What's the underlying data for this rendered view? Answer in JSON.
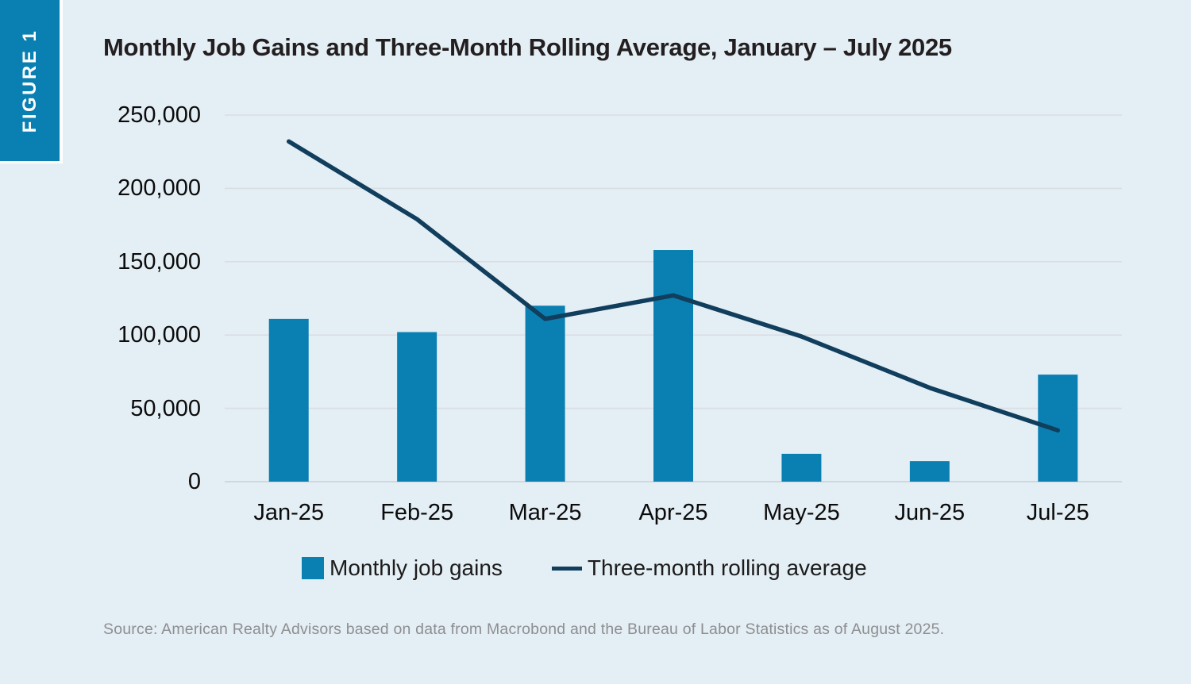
{
  "figure": {
    "label": "FIGURE 1"
  },
  "source": "Source: American Realty Advisors based on data from Macrobond and the Bureau of Labor Statistics as of August 2025.",
  "legend": [
    {
      "label": "Monthly job gains",
      "swatch": "bar-square"
    },
    {
      "label": "Three-month rolling average",
      "swatch": "line-dash"
    }
  ],
  "colors": {
    "background": "#e4eef5",
    "figure_tag": "#0a80b2",
    "bar": "#0a80b2",
    "line": "#103e5c",
    "gridline": "#d9dee2",
    "axis_line": "#c9d1d6",
    "title_text": "#231f20",
    "axis_text": "#0b0b0b",
    "source_text": "#8d8f91"
  },
  "chart_data": {
    "type": "bar",
    "title": "Monthly Job Gains and Three-Month Rolling Average, January – July 2025",
    "categories": [
      "Jan-25",
      "Feb-25",
      "Mar-25",
      "Apr-25",
      "May-25",
      "Jun-25",
      "Jul-25"
    ],
    "series": [
      {
        "name": "Monthly job gains",
        "type": "bar",
        "color": "#0a80b2",
        "values": [
          111000,
          102000,
          120000,
          158000,
          19000,
          14000,
          73000
        ]
      },
      {
        "name": "Three-month rolling average",
        "type": "line",
        "color": "#103e5c",
        "values": [
          232000,
          179000,
          111000,
          127000,
          99000,
          64000,
          35000
        ]
      }
    ],
    "xlabel": "",
    "ylabel": "",
    "ylim": [
      0,
      250000
    ],
    "yticks": [
      {
        "value": 0,
        "label": "0"
      },
      {
        "value": 50000,
        "label": "50,000"
      },
      {
        "value": 100000,
        "label": "100,000"
      },
      {
        "value": 150000,
        "label": "150,000"
      },
      {
        "value": 200000,
        "label": "200,000"
      },
      {
        "value": 250000,
        "label": "250,000"
      }
    ],
    "grid": true,
    "legend_position": "bottom"
  }
}
